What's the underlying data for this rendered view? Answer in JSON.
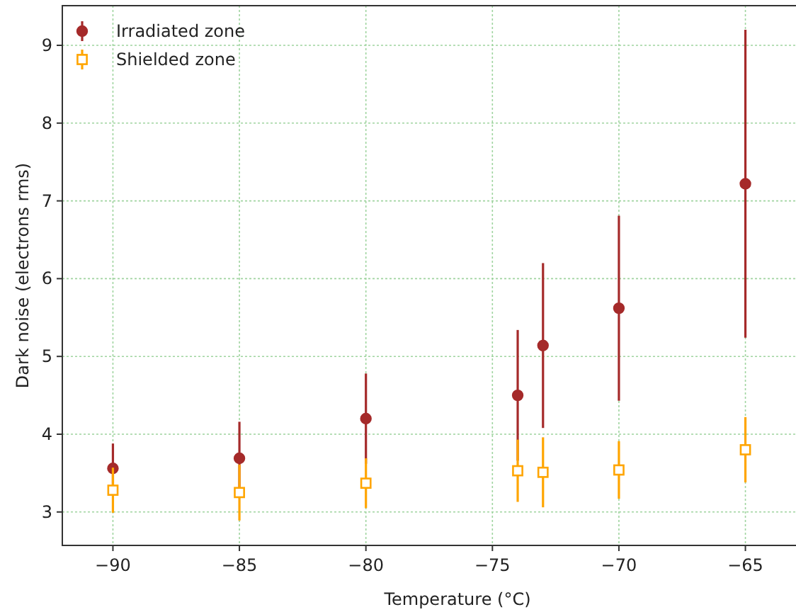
{
  "chart_data": {
    "type": "scatter",
    "xlabel": "Temperature (°C)",
    "ylabel": "Dark noise (electrons rms)",
    "x": [
      -90,
      -85,
      -80,
      -74,
      -73,
      -70,
      -65
    ],
    "series": [
      {
        "name": "Irradiated zone",
        "color": "#a52a2a",
        "marker": "circle",
        "values": [
          3.56,
          3.69,
          4.2,
          4.5,
          5.14,
          5.62,
          7.22
        ],
        "errors": [
          0.32,
          0.47,
          0.58,
          0.84,
          1.06,
          1.19,
          1.98
        ]
      },
      {
        "name": "Shielded zone",
        "color": "#ffa500",
        "marker": "square",
        "values": [
          3.28,
          3.25,
          3.37,
          3.53,
          3.51,
          3.54,
          3.8
        ],
        "errors": [
          0.29,
          0.36,
          0.32,
          0.4,
          0.45,
          0.37,
          0.42
        ]
      }
    ],
    "xlim": [
      -92,
      -63
    ],
    "ylim": [
      2.57,
      9.51
    ],
    "xticks": [
      {
        "value": -90,
        "label": "−90"
      },
      {
        "value": -85,
        "label": "−85"
      },
      {
        "value": -80,
        "label": "−80"
      },
      {
        "value": -75,
        "label": "−75"
      },
      {
        "value": -70,
        "label": "−70"
      },
      {
        "value": -65,
        "label": "−65"
      }
    ],
    "yticks": [
      3,
      4,
      5,
      6,
      7,
      8,
      9
    ],
    "grid": true,
    "legend": "top left"
  }
}
